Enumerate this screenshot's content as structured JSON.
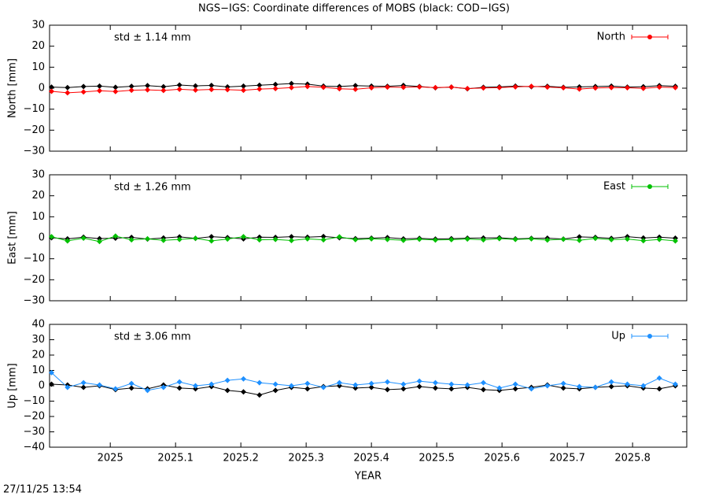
{
  "title": "NGS−IGS: Coordinate differences of MOBS (black: COD−IGS)",
  "timestamp": "27/11/25 13:54",
  "chart_data": [
    {
      "type": "line",
      "ylabel": "North [mm]",
      "annotation": "std ± 1.14 mm",
      "annotation_color": "#ff0000",
      "legend": "top-right",
      "show_xtick_labels": false,
      "x": [
        2024.91,
        2024.9345,
        2024.959,
        2024.9835,
        2025.008,
        2025.0325,
        2025.057,
        2025.0815,
        2025.106,
        2025.1305,
        2025.155,
        2025.1795,
        2025.204,
        2025.2285,
        2025.253,
        2025.2775,
        2025.302,
        2025.3265,
        2025.351,
        2025.3755,
        2025.4,
        2025.4245,
        2025.449,
        2025.4735,
        2025.498,
        2025.5225,
        2025.547,
        2025.5715,
        2025.596,
        2025.6205,
        2025.645,
        2025.6695,
        2025.694,
        2025.7185,
        2025.743,
        2025.7675,
        2025.792,
        2025.8165,
        2025.841,
        2025.8655
      ],
      "series": [
        {
          "color": "#000000",
          "values": [
            0.5,
            0.3,
            0.8,
            1.0,
            0.4,
            0.9,
            1.2,
            0.7,
            1.5,
            1.1,
            1.3,
            0.6,
            1.0,
            1.4,
            1.8,
            2.2,
            1.9,
            1.0,
            0.8,
            1.2,
            1.0,
            0.9,
            1.3,
            0.8,
            0.2,
            0.5,
            -0.3,
            0.4,
            0.6,
            1.0,
            0.7,
            0.9,
            0.4,
            0.6,
            0.8,
            1.0,
            0.5,
            0.7,
            1.2,
            0.9
          ]
        },
        {
          "name": "North",
          "color": "#ff0000",
          "values": [
            -1.5,
            -2.2,
            -1.8,
            -1.2,
            -1.6,
            -1.0,
            -0.8,
            -1.1,
            -0.5,
            -0.9,
            -0.6,
            -0.7,
            -1.0,
            -0.4,
            -0.2,
            0.3,
            0.8,
            0.4,
            -0.3,
            -0.5,
            0.2,
            0.5,
            0.4,
            0.6,
            0.3,
            0.5,
            -0.2,
            0.1,
            0.3,
            0.6,
            0.9,
            0.5,
            0.2,
            -0.4,
            0.1,
            0.3,
            0.2,
            -0.1,
            0.5,
            0.3
          ]
        }
      ],
      "xlim": [
        2024.907,
        2025.883
      ],
      "xticks": [
        2025,
        2025.1,
        2025.2,
        2025.3,
        2025.4,
        2025.5,
        2025.6,
        2025.7,
        2025.8
      ],
      "ylim": [
        -30,
        30
      ],
      "yticks": [
        {
          "value": -30,
          "label": "−30"
        },
        {
          "value": -20,
          "label": "−20"
        },
        {
          "value": -10,
          "label": "−10"
        },
        0,
        10,
        20,
        30
      ]
    },
    {
      "type": "line",
      "ylabel": "East [mm]",
      "annotation": "std ± 1.26 mm",
      "annotation_color": "#00c000",
      "legend": "top-right",
      "show_xtick_labels": false,
      "x": [
        2024.91,
        2024.9345,
        2024.959,
        2024.9835,
        2025.008,
        2025.0325,
        2025.057,
        2025.0815,
        2025.106,
        2025.1305,
        2025.155,
        2025.1795,
        2025.204,
        2025.2285,
        2025.253,
        2025.2775,
        2025.302,
        2025.3265,
        2025.351,
        2025.3755,
        2025.4,
        2025.4245,
        2025.449,
        2025.4735,
        2025.498,
        2025.5225,
        2025.547,
        2025.5715,
        2025.596,
        2025.6205,
        2025.645,
        2025.6695,
        2025.694,
        2025.7185,
        2025.743,
        2025.7675,
        2025.792,
        2025.8165,
        2025.841,
        2025.8655
      ],
      "series": [
        {
          "color": "#000000",
          "values": [
            0.0,
            -0.5,
            0.3,
            -0.4,
            -0.2,
            0.2,
            -0.6,
            -0.1,
            0.4,
            -0.3,
            0.5,
            0.1,
            -0.5,
            0.3,
            0.2,
            0.5,
            0.3,
            0.6,
            0.0,
            -0.4,
            -0.2,
            0.1,
            -0.5,
            -0.3,
            -0.6,
            -0.4,
            -0.2,
            -0.1,
            0.0,
            -0.5,
            -0.3,
            -0.2,
            -0.6,
            0.4,
            0.2,
            -0.3,
            0.5,
            -0.1,
            0.3,
            -0.2
          ]
        },
        {
          "name": "East",
          "color": "#00c000",
          "values": [
            0.5,
            -1.5,
            -0.2,
            -1.8,
            0.8,
            -1.0,
            -0.5,
            -1.2,
            -0.8,
            -0.3,
            -1.5,
            -0.6,
            0.5,
            -1.0,
            -0.8,
            -1.3,
            -0.5,
            -1.0,
            0.4,
            -0.9,
            -0.5,
            -0.8,
            -1.2,
            -0.7,
            -1.1,
            -0.9,
            -0.6,
            -1.0,
            -0.4,
            -0.8,
            -0.5,
            -1.1,
            -0.7,
            -1.2,
            -0.3,
            -0.9,
            -0.6,
            -1.4,
            -0.8,
            -1.5
          ]
        }
      ],
      "xlim": [
        2024.907,
        2025.883
      ],
      "xticks": [
        2025,
        2025.1,
        2025.2,
        2025.3,
        2025.4,
        2025.5,
        2025.6,
        2025.7,
        2025.8
      ],
      "ylim": [
        -30,
        30
      ],
      "yticks": [
        {
          "value": -30,
          "label": "−30"
        },
        {
          "value": -20,
          "label": "−20"
        },
        {
          "value": -10,
          "label": "−10"
        },
        0,
        10,
        20,
        30
      ]
    },
    {
      "type": "line",
      "ylabel": "Up [mm]",
      "xlabel": "YEAR",
      "annotation": "std ± 3.06 mm",
      "annotation_color": "#1e90ff",
      "legend": "top-right",
      "show_xtick_labels": true,
      "x": [
        2024.91,
        2024.9345,
        2024.959,
        2024.9835,
        2025.008,
        2025.0325,
        2025.057,
        2025.0815,
        2025.106,
        2025.1305,
        2025.155,
        2025.1795,
        2025.204,
        2025.2285,
        2025.253,
        2025.2775,
        2025.302,
        2025.3265,
        2025.351,
        2025.3755,
        2025.4,
        2025.4245,
        2025.449,
        2025.4735,
        2025.498,
        2025.5225,
        2025.547,
        2025.5715,
        2025.596,
        2025.6205,
        2025.645,
        2025.6695,
        2025.694,
        2025.7185,
        2025.743,
        2025.7675,
        2025.792,
        2025.8165,
        2025.841,
        2025.8655
      ],
      "series": [
        {
          "color": "#000000",
          "values": [
            1.0,
            0.5,
            -1.0,
            0.0,
            -2.5,
            -1.5,
            -2.0,
            0.5,
            -1.5,
            -2.0,
            -0.5,
            -3.0,
            -4.0,
            -6.0,
            -3.0,
            -1.0,
            -2.0,
            -0.5,
            0.0,
            -1.5,
            -1.0,
            -2.5,
            -2.0,
            -0.5,
            -1.5,
            -2.0,
            -1.0,
            -2.5,
            -3.0,
            -2.0,
            -1.0,
            0.5,
            -1.5,
            -2.0,
            -1.0,
            -0.5,
            0.0,
            -1.5,
            -2.0,
            0.0
          ]
        },
        {
          "name": "Up",
          "color": "#1e90ff",
          "values": [
            8.5,
            -1.0,
            2.0,
            0.5,
            -2.0,
            1.5,
            -3.0,
            -1.0,
            2.5,
            0.0,
            1.0,
            3.5,
            4.5,
            2.0,
            1.0,
            0.0,
            1.5,
            -1.0,
            2.0,
            0.5,
            1.5,
            2.5,
            1.0,
            3.0,
            2.0,
            1.0,
            0.5,
            2.0,
            -1.5,
            1.0,
            -2.0,
            0.0,
            1.5,
            -0.5,
            -1.0,
            2.5,
            1.0,
            0.0,
            5.0,
            1.0
          ]
        }
      ],
      "xlim": [
        2024.907,
        2025.883
      ],
      "xticks": [
        2025,
        2025.1,
        2025.2,
        2025.3,
        2025.4,
        2025.5,
        2025.6,
        2025.7,
        2025.8
      ],
      "ylim": [
        -40,
        40
      ],
      "yticks": [
        {
          "value": -40,
          "label": "−40"
        },
        {
          "value": -30,
          "label": "−30"
        },
        {
          "value": -20,
          "label": "−20"
        },
        {
          "value": -10,
          "label": "−10"
        },
        0,
        10,
        20,
        30,
        40
      ]
    }
  ]
}
